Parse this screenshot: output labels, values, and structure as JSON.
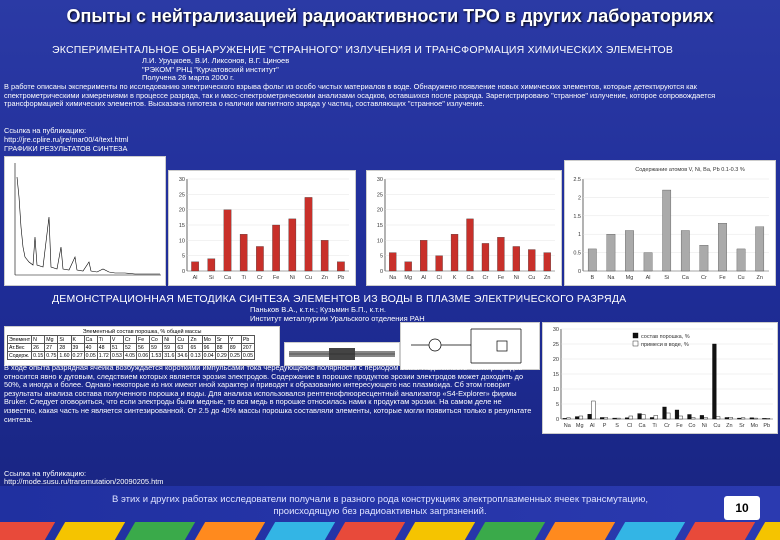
{
  "slide_title": "Опыты с нейтрализацией радиоактивности ТРО в других лабораториях",
  "section1": {
    "heading": "ЭКСПЕРИМЕНТАЛЬНОЕ ОБНАРУЖЕНИЕ \"СТРАННОГО\" ИЗЛУЧЕНИЯ И ТРАНСФОРМАЦИЯ ХИМИЧЕСКИХ ЭЛЕМЕНТОВ",
    "authors": [
      "Л.И. Уруцкоев, В.И. Ликсонов, В.Г. Циноев",
      "\"РЭКОМ\" РНЦ \"Курчатовский институт\"",
      "Получена 26 марта 2000 г."
    ],
    "body": "В работе описаны эксперименты по исследованию электрического взрыва фольг из особо чистых материалов в воде. Обнаружено появление новых химических элементов, которые детектируются как спектрометрическими измерениями в процессе разряда, так и масс-спектрометрическими анализами осадков, оставшихся после разряда. Зарегистрировано \"странное\" излучение, которое сопровождается трансформацией химических элементов. Высказана гипотеза о наличии магнитного заряда у частиц, составляющих \"странное\" излучение.",
    "link_label": "Ссылка на публикацию:",
    "link": "http://jre.cplire.ru/jre/mar00/4/text.html",
    "graphs_label": "ГРАФИКИ РЕЗУЛЬТАТОВ СИНТЕЗА"
  },
  "chart_mid": {
    "categories": [
      "Al",
      "Si",
      "Ca",
      "Ti",
      "Cr",
      "Fe",
      "Ni",
      "Cu",
      "Zn",
      "Pb"
    ],
    "values": [
      3,
      4,
      20,
      12,
      8,
      15,
      17,
      24,
      10,
      3
    ],
    "ylim": [
      0,
      30
    ]
  },
  "chart_mid2": {
    "categories": [
      "Na",
      "Mg",
      "Al",
      "Ci",
      "K",
      "Ca",
      "Cr",
      "Fe",
      "Ni",
      "Cu",
      "Zn"
    ],
    "values": [
      6,
      3,
      10,
      5,
      12,
      17,
      9,
      11,
      8,
      7,
      6
    ],
    "ylim": [
      0,
      30
    ]
  },
  "chart_right": {
    "title": "Содержание атомов V, Ni, Ba, Pb 0.1-0.3 %",
    "categories": [
      "B",
      "Na",
      "Mg",
      "Al",
      "Si",
      "Ca",
      "Cr",
      "Fe",
      "Cu",
      "Zn"
    ],
    "values": [
      0.6,
      1.0,
      1.1,
      0.5,
      2.2,
      1.1,
      0.7,
      1.3,
      0.6,
      1.2
    ],
    "ylim": [
      0,
      2.5
    ]
  },
  "section2": {
    "heading": "ДЕМОНСТРАЦИОННАЯ МЕТОДИКА СИНТЕЗА ЭЛЕМЕНТОВ ИЗ ВОДЫ В ПЛАЗМЕ ЭЛЕКТРИЧЕСКОГО РАЗРЯДА",
    "authors": [
      "Паньков В.А., к.т.н.; Кузьмин Б.П., к.т.н.",
      "Институт металлургии Уральского отделения РАН"
    ],
    "table_caption": "Элементный состав порошка, % общей массы",
    "table_rows": [
      [
        "Элемент",
        "N",
        "Mg",
        "Si",
        "K",
        "Ca",
        "Ti",
        "V",
        "Cr",
        "Fe",
        "Co",
        "Ni",
        "Cu",
        "Zn",
        "Mo",
        "Sr",
        "Y",
        "Pb"
      ],
      [
        "Ат.Вес",
        "26",
        "27",
        "28",
        "39",
        "40",
        "48",
        "51",
        "52",
        "56",
        "59",
        "59",
        "63",
        "65",
        "96",
        "88",
        "89",
        "207"
      ],
      [
        "Содерж.",
        "0.15",
        "0.75",
        "1.60",
        "0.27",
        "0.05",
        "1.72",
        "0.53",
        "4.05",
        "0.06",
        "1.53",
        "31.6",
        "34.6",
        "0.13",
        "0.04",
        "0.29",
        "0.25",
        "0.05"
      ]
    ],
    "body": "В ходе опыта разрядная ячейка возбуждается короткими импульсами тока чередующейся полярности с периодом 10мс. Подвижность части разрядов относится явно к дуговым, следствием которых является эрозия электродов. Содержание в порошке продуктов эрозии электродов может доходить до 50%, а иногда и более. Однако некоторые из них имеют иной характер и приводят к образованию интересующего нас плазмоида. Сб этом говорит результаты анализа состава полученного порошка и воды. Для анализа использовался рентгенофлюоресцентный анализатор «S4-Explorer» фирмы Bruker. Следует оговориться, что если электроды были медные, то вся медь в порошке относилась нами к продуктам эрозии. На самом деле не известно, какая часть не является синтезированной. От 2.5 до 40% массы порошка составляли элементы, которые могли появиться только в результате синтеза.",
    "link_label": "Ссылка на публикацию:",
    "link": "http://mode.susu.ru/transmutation/20090205.htm"
  },
  "chart_bottom": {
    "legend": [
      "состав порошка, %",
      "примеси в воде, %"
    ],
    "categories": [
      "Na",
      "Mg",
      "Al",
      "P",
      "S",
      "Cl",
      "Ca",
      "Ti",
      "Cr",
      "Fe",
      "Co",
      "Ni",
      "Cu",
      "Zn",
      "Sr",
      "Mo",
      "Pb"
    ],
    "series": [
      {
        "name": "состав порошка, %",
        "values": [
          0.2,
          0.8,
          1.6,
          0.5,
          0.3,
          0.4,
          1.8,
          0.5,
          4.0,
          3.0,
          1.5,
          1.2,
          25,
          0.5,
          0.3,
          0.4,
          0.2
        ]
      },
      {
        "name": "примеси в воде, %",
        "values": [
          0.4,
          1.0,
          6.0,
          0.5,
          0.3,
          1.0,
          1.5,
          1.2,
          2.0,
          1.0,
          0.5,
          0.5,
          0.8,
          0.6,
          0.4,
          0.3,
          0.2
        ]
      }
    ],
    "ylim": [
      0,
      30
    ]
  },
  "footer": {
    "text": "В этих и других работах исследователи получали в разного рода конструкциях электроплазменных ячеек трансмутацию, происходящую без радиоактивных загрязнений.",
    "page": "10"
  },
  "colors": {
    "bar_red": "#c8302a",
    "bar_gray": "#aaaaaa",
    "bar_black": "#111111"
  }
}
